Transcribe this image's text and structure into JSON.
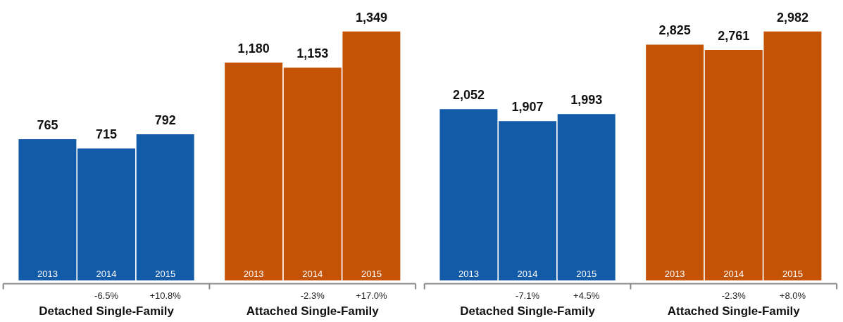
{
  "chart_data": [
    {
      "type": "bar",
      "categories": [
        "Detached Single-Family",
        "Attached Single-Family"
      ],
      "legend": false,
      "grid": false,
      "series": [
        {
          "name": "2013",
          "colors": [
            "#115ba8",
            "#c55306"
          ],
          "values": [
            765,
            1180
          ],
          "value_labels": [
            "765",
            "1,180"
          ]
        },
        {
          "name": "2014",
          "colors": [
            "#115ba8",
            "#c55306"
          ],
          "values": [
            715,
            1153
          ],
          "value_labels": [
            "715",
            "1,153"
          ]
        },
        {
          "name": "2015",
          "colors": [
            "#115ba8",
            "#c55306"
          ],
          "values": [
            792,
            1349
          ],
          "value_labels": [
            "792",
            "1,349"
          ]
        }
      ],
      "annotations": [
        "-6.5%",
        "+10.8%",
        "-2.3%",
        "+17.0%"
      ]
    },
    {
      "type": "bar",
      "categories": [
        "Detached Single-Family",
        "Attached Single-Family"
      ],
      "legend": false,
      "grid": false,
      "series": [
        {
          "name": "2013",
          "colors": [
            "#115ba8",
            "#c55306"
          ],
          "values": [
            2052,
            2825
          ],
          "value_labels": [
            "2,052",
            "2,825"
          ]
        },
        {
          "name": "2014",
          "colors": [
            "#115ba8",
            "#c55306"
          ],
          "values": [
            1907,
            2761
          ],
          "value_labels": [
            "1,907",
            "2,761"
          ]
        },
        {
          "name": "2015",
          "colors": [
            "#115ba8",
            "#c55306"
          ],
          "values": [
            1993,
            2982
          ],
          "value_labels": [
            "1,993",
            "2,982"
          ]
        }
      ],
      "annotations": [
        "-7.1%",
        "+4.5%",
        "-2.3%",
        "+8.0%"
      ]
    }
  ]
}
